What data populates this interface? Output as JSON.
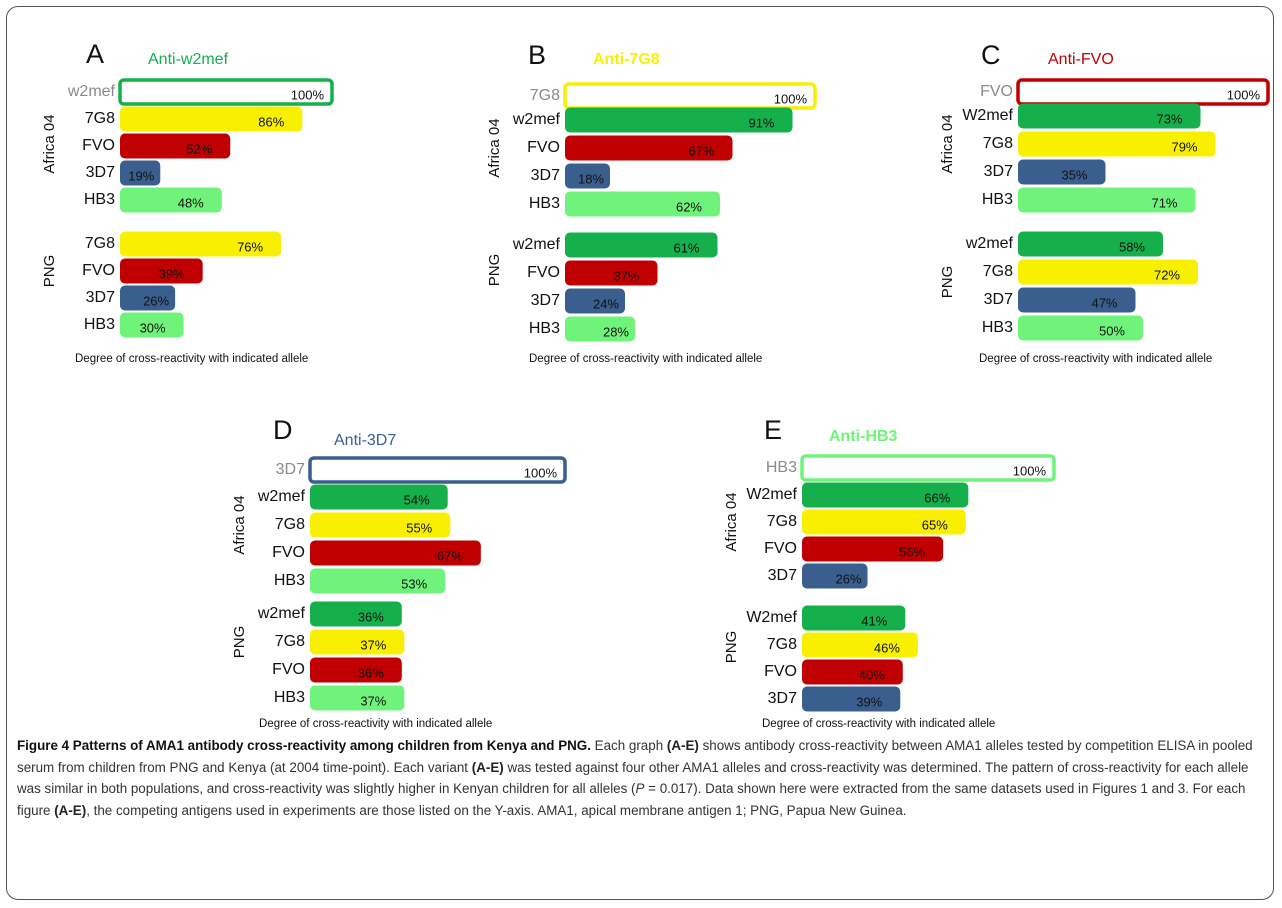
{
  "colors": {
    "w2mef": "#15b04c",
    "7G8": "#f8f000",
    "FVO": "#c00000",
    "3D7": "#3a5f8f",
    "HB3": "#70f37b",
    "text": "#111111",
    "reference_label": "#8a8a8a"
  },
  "chart_data": [
    {
      "type": "bar",
      "panel": "A",
      "title": "Anti-w2mef",
      "title_color": "#15b04c",
      "xlabel": "Degree of cross-reactivity with indicated allele",
      "xlim": [
        0,
        100
      ],
      "reference": {
        "label": "w2mef",
        "value": 100,
        "value_label": "100%",
        "color": "#15b04c"
      },
      "groups": [
        {
          "name": "Africa 04",
          "bars": [
            {
              "label": "7G8",
              "value": 86,
              "value_label": "86%",
              "color": "#f8f000"
            },
            {
              "label": "FVO",
              "value": 52,
              "value_label": "52%",
              "color": "#c00000"
            },
            {
              "label": "3D7",
              "value": 19,
              "value_label": "19%",
              "color": "#3a5f8f"
            },
            {
              "label": "HB3",
              "value": 48,
              "value_label": "48%",
              "color": "#70f37b"
            }
          ]
        },
        {
          "name": "PNG",
          "bars": [
            {
              "label": "7G8",
              "value": 76,
              "value_label": "76%",
              "color": "#f8f000"
            },
            {
              "label": "FVO",
              "value": 39,
              "value_label": "39%",
              "color": "#c00000"
            },
            {
              "label": "3D7",
              "value": 26,
              "value_label": "26%",
              "color": "#3a5f8f"
            },
            {
              "label": "HB3",
              "value": 30,
              "value_label": "30%",
              "color": "#70f37b"
            }
          ]
        }
      ]
    },
    {
      "type": "bar",
      "panel": "B",
      "title": "Anti-7G8",
      "title_color": "#f8f000",
      "xlabel": "Degree of cross-reactivity with indicated allele",
      "xlim": [
        0,
        100
      ],
      "reference": {
        "label": "7G8",
        "value": 100,
        "value_label": "100%",
        "color": "#f8f000"
      },
      "groups": [
        {
          "name": "Africa 04",
          "bars": [
            {
              "label": "w2mef",
              "value": 91,
              "value_label": "91%",
              "color": "#15b04c"
            },
            {
              "label": "FVO",
              "value": 67,
              "value_label": "67%",
              "color": "#c00000"
            },
            {
              "label": "3D7",
              "value": 18,
              "value_label": "18%",
              "color": "#3a5f8f"
            },
            {
              "label": "HB3",
              "value": 62,
              "value_label": "62%",
              "color": "#70f37b"
            }
          ]
        },
        {
          "name": "PNG",
          "bars": [
            {
              "label": "w2mef",
              "value": 61,
              "value_label": "61%",
              "color": "#15b04c"
            },
            {
              "label": "FVO",
              "value": 37,
              "value_label": "37%",
              "color": "#c00000"
            },
            {
              "label": "3D7",
              "value": 24,
              "value_label": "24%",
              "color": "#3a5f8f"
            },
            {
              "label": "HB3",
              "value": 28,
              "value_label": "28%",
              "color": "#70f37b"
            }
          ]
        }
      ]
    },
    {
      "type": "bar",
      "panel": "C",
      "title": "Anti-FVO",
      "title_color": "#c00000",
      "xlabel": "Degree of cross-reactivity with indicated allele",
      "xlim": [
        0,
        100
      ],
      "reference": {
        "label": "FVO",
        "value": 100,
        "value_label": "100%",
        "color": "#c00000"
      },
      "groups": [
        {
          "name": "Africa 04",
          "bars": [
            {
              "label": "W2mef",
              "value": 73,
              "value_label": "73%",
              "color": "#15b04c"
            },
            {
              "label": "7G8",
              "value": 79,
              "value_label": "79%",
              "color": "#f8f000"
            },
            {
              "label": "3D7",
              "value": 35,
              "value_label": "35%",
              "color": "#3a5f8f"
            },
            {
              "label": "HB3",
              "value": 71,
              "value_label": "71%",
              "color": "#70f37b"
            }
          ]
        },
        {
          "name": "PNG",
          "bars": [
            {
              "label": "w2mef",
              "value": 58,
              "value_label": "58%",
              "color": "#15b04c"
            },
            {
              "label": "7G8",
              "value": 72,
              "value_label": "72%",
              "color": "#f8f000"
            },
            {
              "label": "3D7",
              "value": 47,
              "value_label": "47%",
              "color": "#3a5f8f"
            },
            {
              "label": "HB3",
              "value": 50,
              "value_label": "50%",
              "color": "#70f37b"
            }
          ]
        }
      ]
    },
    {
      "type": "bar",
      "panel": "D",
      "title": "Anti-3D7",
      "title_color": "#3a5f8f",
      "xlabel": "Degree of cross-reactivity with indicated allele",
      "xlim": [
        0,
        100
      ],
      "reference": {
        "label": "3D7",
        "value": 100,
        "value_label": "100%",
        "color": "#3a5f8f"
      },
      "groups": [
        {
          "name": "Africa 04",
          "bars": [
            {
              "label": "w2mef",
              "value": 54,
              "value_label": "54%",
              "color": "#15b04c"
            },
            {
              "label": "7G8",
              "value": 55,
              "value_label": "55%",
              "color": "#f8f000"
            },
            {
              "label": "FVO",
              "value": 67,
              "value_label": "67%",
              "color": "#c00000"
            },
            {
              "label": "HB3",
              "value": 53,
              "value_label": "53%",
              "color": "#70f37b"
            }
          ]
        },
        {
          "name": "PNG",
          "bars": [
            {
              "label": "w2mef",
              "value": 36,
              "value_label": "36%",
              "color": "#15b04c"
            },
            {
              "label": "7G8",
              "value": 37,
              "value_label": "37%",
              "color": "#f8f000"
            },
            {
              "label": "FVO",
              "value": 36,
              "value_label": "36%",
              "color": "#c00000"
            },
            {
              "label": "HB3",
              "value": 37,
              "value_label": "37%",
              "color": "#70f37b"
            }
          ]
        }
      ]
    },
    {
      "type": "bar",
      "panel": "E",
      "title": "Anti-HB3",
      "title_color": "#70f37b",
      "xlabel": "Degree of cross-reactivity with indicated allele",
      "xlim": [
        0,
        100
      ],
      "reference": {
        "label": "HB3",
        "value": 100,
        "value_label": "100%",
        "color": "#70f37b"
      },
      "groups": [
        {
          "name": "Africa 04",
          "bars": [
            {
              "label": "W2mef",
              "value": 66,
              "value_label": "66%",
              "color": "#15b04c"
            },
            {
              "label": "7G8",
              "value": 65,
              "value_label": "65%",
              "color": "#f8f000"
            },
            {
              "label": "FVO",
              "value": 56,
              "value_label": "56%",
              "color": "#c00000"
            },
            {
              "label": "3D7",
              "value": 26,
              "value_label": "26%",
              "color": "#3a5f8f"
            }
          ]
        },
        {
          "name": "PNG",
          "bars": [
            {
              "label": "W2mef",
              "value": 41,
              "value_label": "41%",
              "color": "#15b04c"
            },
            {
              "label": "7G8",
              "value": 46,
              "value_label": "46%",
              "color": "#f8f000"
            },
            {
              "label": "FVO",
              "value": 40,
              "value_label": "40%",
              "color": "#c00000"
            },
            {
              "label": "3D7",
              "value": 39,
              "value_label": "39%",
              "color": "#3a5f8f"
            }
          ]
        }
      ]
    }
  ],
  "caption": {
    "title": "Figure 4 Patterns of AMA1 antibody cross-reactivity among children from Kenya and PNG.",
    "t1": " Each graph ",
    "ref1": "(A-E)",
    "t2": " shows antibody cross-reactivity between AMA1 alleles tested by competition ELISA in pooled serum from children from PNG and Kenya (at 2004 time-point). Each variant ",
    "ref2": "(A-E)",
    "t3": " was tested against four other AMA1 alleles and cross-reactivity was determined. The pattern of cross-reactivity for each allele was similar in both populations, and cross-reactivity was slightly higher in Kenyan children for all alleles (",
    "p_symbol": "P",
    "t4": " = 0.017). Data shown here were extracted from the same datasets used in Figures 1 and 3. For each figure ",
    "ref3": "(A-E)",
    "t5": ", the competing antigens used in experiments are those listed on the Y-axis. AMA1, apical membrane antigen 1; PNG, Papua New Guinea."
  }
}
